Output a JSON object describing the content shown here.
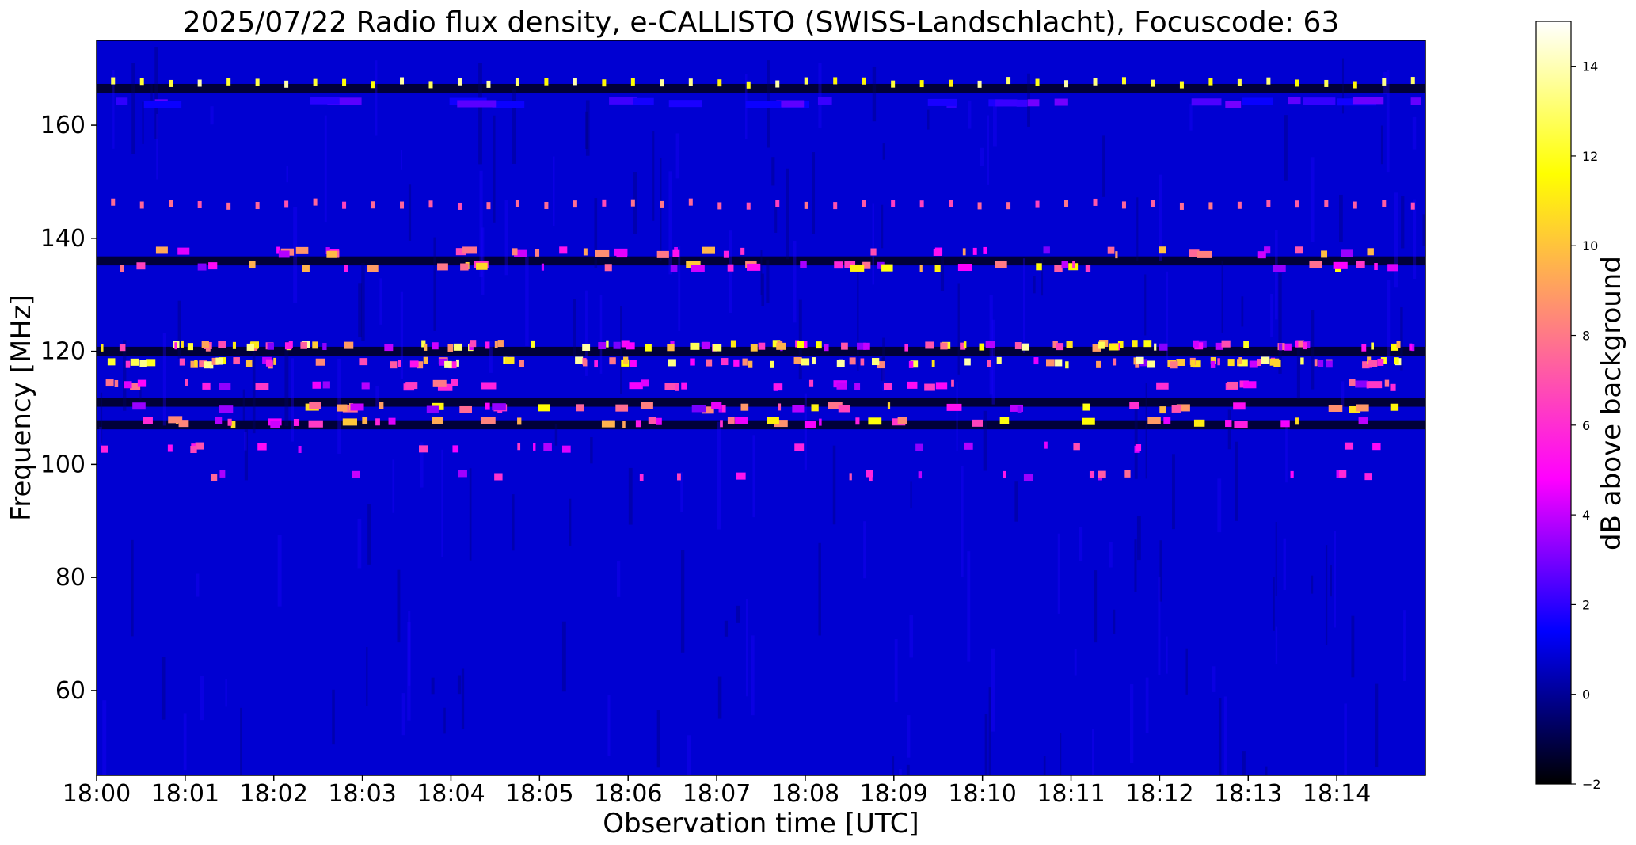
{
  "chart_data": {
    "type": "heatmap",
    "title": "2025/07/22  Radio flux density, e-CALLISTO (SWISS-Landschlacht), Focuscode: 63",
    "xlabel": "Observation time [UTC]",
    "ylabel": "Frequency [MHz]",
    "colorbar_label": "dB above background",
    "x_ticks": [
      "18:00",
      "18:01",
      "18:02",
      "18:03",
      "18:04",
      "18:05",
      "18:06",
      "18:07",
      "18:08",
      "18:09",
      "18:10",
      "18:11",
      "18:12",
      "18:13",
      "18:14"
    ],
    "xlim_minutes": [
      0,
      15
    ],
    "y_ticks": [
      60,
      80,
      100,
      120,
      140,
      160
    ],
    "ylim": [
      45,
      175
    ],
    "colorbar_ticks": [
      -2,
      0,
      2,
      4,
      6,
      8,
      10,
      12,
      14
    ],
    "colorbar_range": [
      -2,
      15
    ],
    "colormap": [
      "#000000",
      "#0000ff",
      "#ff00ff",
      "#ff8080",
      "#ffff00",
      "#ffffff"
    ],
    "background_level_db": 0.8,
    "bands": [
      {
        "freq": 167.5,
        "pattern": "periodic-spikes",
        "peak_db": 14
      },
      {
        "freq": 164,
        "pattern": "noise",
        "peak_db": 2
      },
      {
        "freq": 146,
        "pattern": "periodic-spikes",
        "peak_db": 8
      },
      {
        "freq": 137.5,
        "pattern": "bursty",
        "peak_db": 10
      },
      {
        "freq": 135,
        "pattern": "bursty",
        "peak_db": 12
      },
      {
        "freq": 121,
        "pattern": "dense-bursts",
        "peak_db": 14
      },
      {
        "freq": 118,
        "pattern": "dense-bursts",
        "peak_db": 14
      },
      {
        "freq": 114,
        "pattern": "bursty",
        "peak_db": 8
      },
      {
        "freq": 110,
        "pattern": "bursty",
        "peak_db": 12
      },
      {
        "freq": 107.5,
        "pattern": "bursty",
        "peak_db": 12
      },
      {
        "freq": 103,
        "pattern": "sparse",
        "peak_db": 7
      },
      {
        "freq": 98,
        "pattern": "sparse",
        "peak_db": 8
      }
    ],
    "dark_lanes_mhz": [
      166.5,
      136,
      120,
      111,
      107
    ]
  }
}
